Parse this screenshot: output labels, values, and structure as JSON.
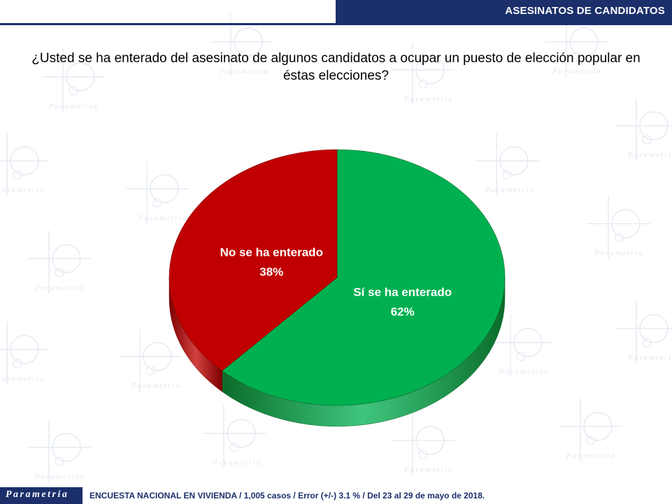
{
  "header": {
    "title": "ASESINATOS DE CANDIDATOS"
  },
  "question": "¿Usted se ha enterado del asesinato de algunos candidatos a ocupar un puesto de elección popular en éstas elecciones?",
  "chart_data": {
    "type": "pie",
    "title": "",
    "slices": [
      {
        "label": "Sí se ha enterado",
        "value": 62,
        "value_label": "62%",
        "color": "#00b050",
        "side_color": "#0b6a2a"
      },
      {
        "label": "No se ha enterado",
        "value": 38,
        "value_label": "38%",
        "color": "#c00000",
        "side_color": "#7a0000"
      }
    ],
    "start_angle": "12 o'clock",
    "direction": "clockwise",
    "style": "3D tilted pie"
  },
  "footer": {
    "logo": "Parametria",
    "note": "ENCUESTA NACIONAL EN VIVIENDA / 1,005 casos / Error (+/-) 3.1 % / Del 23 al 29 de mayo de 2018."
  },
  "colors": {
    "brand_navy": "#1b2f6b",
    "watermark": "#c9d3e3"
  }
}
